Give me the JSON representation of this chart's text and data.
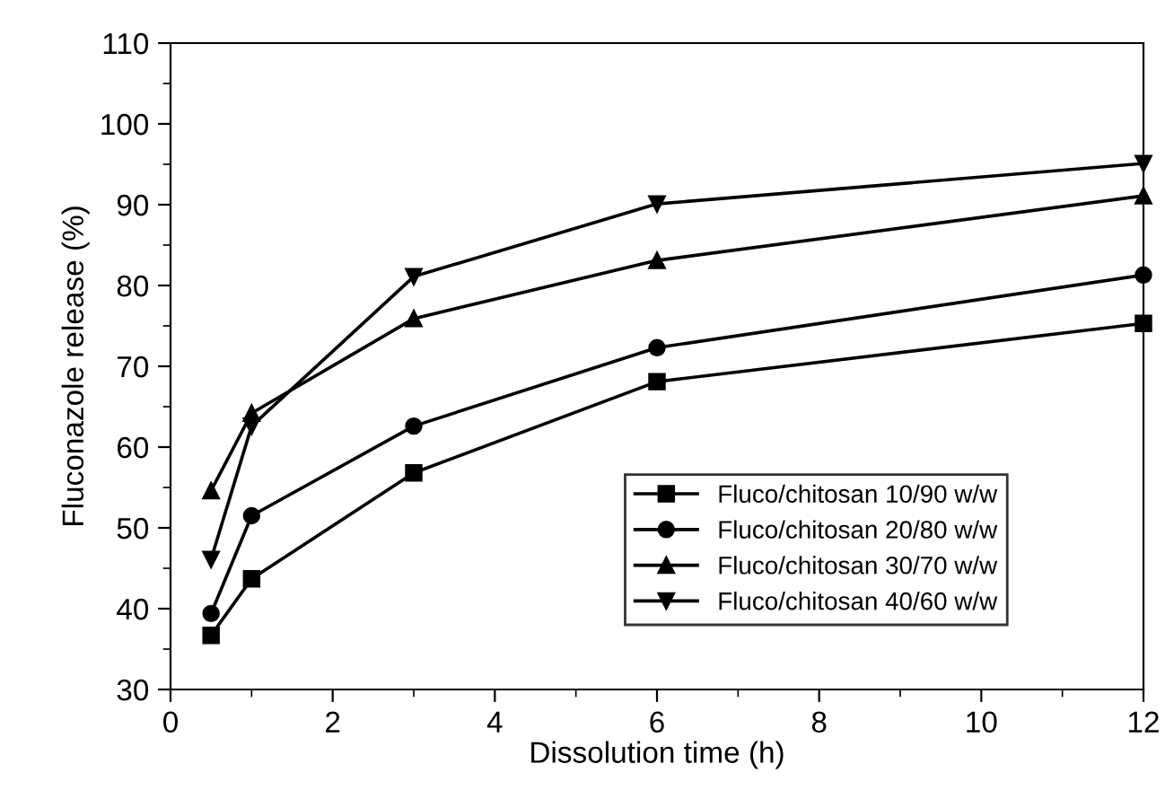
{
  "chart_data": {
    "type": "line",
    "xlabel": "Dissolution time (h)",
    "ylabel": "Fluconazole release (%)",
    "x": [
      0.5,
      1,
      3,
      6,
      12
    ],
    "series": [
      {
        "name": "Fluco/chitosan 10/90 w/w",
        "color": "#000000",
        "marker": "square",
        "values": [
          36.7,
          43.7,
          56.8,
          68.1,
          75.3
        ]
      },
      {
        "name": "Fluco/chitosan 20/80 w/w",
        "color": "#000000",
        "marker": "circle",
        "values": [
          39.4,
          51.5,
          62.6,
          72.3,
          81.3
        ]
      },
      {
        "name": "Fluco/chitosan 30/70 w/w",
        "color": "#000000",
        "marker": "triangle",
        "values": [
          54.6,
          64.2,
          75.9,
          83.1,
          91.1
        ]
      },
      {
        "name": "Fluco/chitosan 40/60 w/w",
        "color": "#000000",
        "marker": "triangle_down",
        "values": [
          46.1,
          62.6,
          81.1,
          90.1,
          95.1
        ]
      }
    ],
    "xlim": [
      0,
      12
    ],
    "ylim": [
      30,
      110
    ],
    "xticks": [
      0,
      2,
      4,
      6,
      8,
      10,
      12
    ],
    "yticks": [
      30,
      40,
      50,
      60,
      70,
      80,
      90,
      100,
      110
    ],
    "grid": false,
    "legend": "bottom right",
    "line_style": "solid"
  }
}
